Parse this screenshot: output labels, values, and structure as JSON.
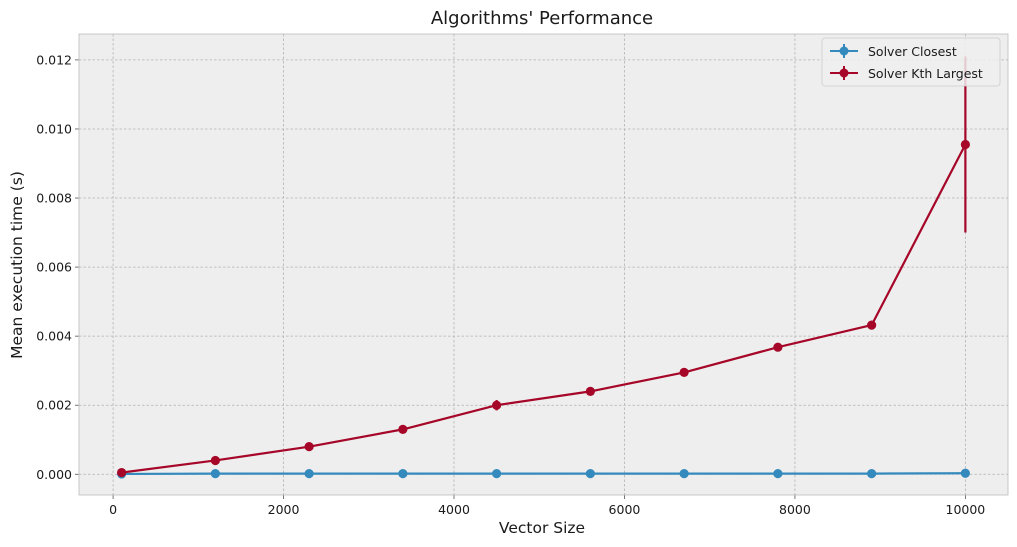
{
  "chart_data": {
    "type": "line",
    "title": "Algorithms' Performance",
    "xlabel": "Vector Size",
    "ylabel": "Mean execution time (s)",
    "xlim": [
      -400,
      10500
    ],
    "ylim": [
      -0.0006,
      0.01275
    ],
    "xticks": [
      0,
      2000,
      4000,
      6000,
      8000,
      10000
    ],
    "yticks": [
      0.0,
      0.002,
      0.004,
      0.006,
      0.008,
      0.01,
      0.012
    ],
    "xtick_labels": [
      "0",
      "2000",
      "4000",
      "6000",
      "8000",
      "10000"
    ],
    "ytick_labels": [
      "0.000",
      "0.002",
      "0.004",
      "0.006",
      "0.008",
      "0.010",
      "0.012"
    ],
    "grid": true,
    "legend_position": "upper right",
    "x": [
      100,
      1200,
      2300,
      3400,
      4500,
      5600,
      6700,
      7800,
      8900,
      10000
    ],
    "series": [
      {
        "name": "Solver Closest",
        "color": "#348abd",
        "values": [
          1e-05,
          2e-05,
          2e-05,
          2e-05,
          2e-05,
          2e-05,
          2e-05,
          2e-05,
          2e-05,
          3e-05
        ],
        "errors": [
          0,
          0,
          0,
          0,
          0,
          0,
          0,
          0,
          0,
          0
        ]
      },
      {
        "name": "Solver Kth Largest",
        "color": "#a60628",
        "values": [
          5e-05,
          0.0004,
          0.0008,
          0.0013,
          0.002,
          0.0024,
          0.00295,
          0.00368,
          0.00432,
          0.00955
        ],
        "errors": [
          0,
          0,
          0,
          0,
          0.00015,
          0,
          0,
          0,
          0.00012,
          0.00255
        ]
      }
    ]
  }
}
